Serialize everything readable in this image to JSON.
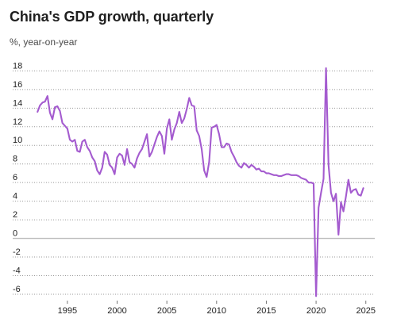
{
  "title": "China's GDP growth, quarterly",
  "subtitle": "%, year-on-year",
  "colors": {
    "series": "#a45bcf",
    "grid": "#9a9a9a",
    "zero": "#bdbdbd",
    "text": "#222222"
  },
  "chart_data": {
    "type": "line",
    "title": "China's GDP growth, quarterly",
    "subtitle": "%, year-on-year",
    "xlabel": "",
    "ylabel": "",
    "xlim": [
      1991.5,
      2025.5
    ],
    "ylim": [
      -6.6,
      18.8
    ],
    "x_ticks": [
      1995,
      2000,
      2005,
      2010,
      2015,
      2020,
      2025
    ],
    "y_ticks": [
      18,
      16,
      14,
      12,
      10,
      8,
      6,
      4,
      2,
      0,
      -2,
      -4,
      -6
    ],
    "x_tick_labels": [
      "1995",
      "2000",
      "2005",
      "2010",
      "2015",
      "2020",
      "2025"
    ],
    "y_tick_labels": [
      "18",
      "16",
      "14",
      "12",
      "10",
      "8",
      "6",
      "4",
      "2",
      "0",
      "-2",
      "-4",
      "-6"
    ],
    "grid": "horizontal dotted",
    "legend": "none",
    "series": [
      {
        "x": [
          1992.0,
          1992.25,
          1992.5,
          1992.75,
          1993.0,
          1993.25,
          1993.5,
          1993.75,
          1994.0,
          1994.25,
          1994.5,
          1994.75,
          1995.0,
          1995.25,
          1995.5,
          1995.75,
          1996.0,
          1996.25,
          1996.5,
          1996.75,
          1997.0,
          1997.25,
          1997.5,
          1997.75,
          1998.0,
          1998.25,
          1998.5,
          1998.75,
          1999.0,
          1999.25,
          1999.5,
          1999.75,
          2000.0,
          2000.25,
          2000.5,
          2000.75,
          2001.0,
          2001.25,
          2001.5,
          2001.75,
          2002.0,
          2002.25,
          2002.5,
          2002.75,
          2003.0,
          2003.25,
          2003.5,
          2003.75,
          2004.0,
          2004.25,
          2004.5,
          2004.75,
          2005.0,
          2005.25,
          2005.5,
          2005.75,
          2006.0,
          2006.25,
          2006.5,
          2006.75,
          2007.0,
          2007.25,
          2007.5,
          2007.75,
          2008.0,
          2008.25,
          2008.5,
          2008.75,
          2009.0,
          2009.25,
          2009.5,
          2009.75,
          2010.0,
          2010.25,
          2010.5,
          2010.75,
          2011.0,
          2011.25,
          2011.5,
          2011.75,
          2012.0,
          2012.25,
          2012.5,
          2012.75,
          2013.0,
          2013.25,
          2013.5,
          2013.75,
          2014.0,
          2014.25,
          2014.5,
          2014.75,
          2015.0,
          2015.25,
          2015.5,
          2015.75,
          2016.0,
          2016.25,
          2016.5,
          2016.75,
          2017.0,
          2017.25,
          2017.5,
          2017.75,
          2018.0,
          2018.25,
          2018.5,
          2018.75,
          2019.0,
          2019.25,
          2019.5,
          2019.75,
          2020.0,
          2020.25,
          2020.5,
          2020.75,
          2021.0,
          2021.25,
          2021.5,
          2021.75,
          2022.0,
          2022.25,
          2022.5,
          2022.75,
          2023.0,
          2023.25,
          2023.5,
          2023.75,
          2024.0,
          2024.25,
          2024.5,
          2024.75
        ],
        "values": [
          13.6,
          14.3,
          14.6,
          14.7,
          15.3,
          13.5,
          12.8,
          14.1,
          14.2,
          13.7,
          12.4,
          12.1,
          11.8,
          10.6,
          10.4,
          10.6,
          9.4,
          9.3,
          10.4,
          10.6,
          9.8,
          9.4,
          8.7,
          8.3,
          7.3,
          6.9,
          7.6,
          9.3,
          9.0,
          7.9,
          7.6,
          6.9,
          8.7,
          9.1,
          8.9,
          7.9,
          9.6,
          8.2,
          8.0,
          7.6,
          8.6,
          9.2,
          9.6,
          10.4,
          11.2,
          8.8,
          9.3,
          10.1,
          10.9,
          11.5,
          11.0,
          9.1,
          11.8,
          12.8,
          10.6,
          11.7,
          12.4,
          13.6,
          12.4,
          12.9,
          13.9,
          15.1,
          14.3,
          14.2,
          11.6,
          11.0,
          9.6,
          7.3,
          6.6,
          8.2,
          11.9,
          12.0,
          12.2,
          11.2,
          9.8,
          9.8,
          10.2,
          10.1,
          9.3,
          8.8,
          8.2,
          7.8,
          7.6,
          8.1,
          7.9,
          7.6,
          7.9,
          7.7,
          7.4,
          7.5,
          7.2,
          7.2,
          7.0,
          7.0,
          6.9,
          6.8,
          6.8,
          6.7,
          6.7,
          6.8,
          6.9,
          6.9,
          6.8,
          6.8,
          6.8,
          6.7,
          6.5,
          6.4,
          6.3,
          6.0,
          6.0,
          5.9,
          -6.2,
          3.3,
          4.9,
          6.4,
          18.3,
          7.9,
          4.9,
          4.0,
          4.8,
          0.4,
          3.9,
          2.9,
          4.5,
          6.3,
          4.9,
          5.2,
          5.3,
          4.7,
          4.6,
          5.4
        ]
      }
    ]
  }
}
